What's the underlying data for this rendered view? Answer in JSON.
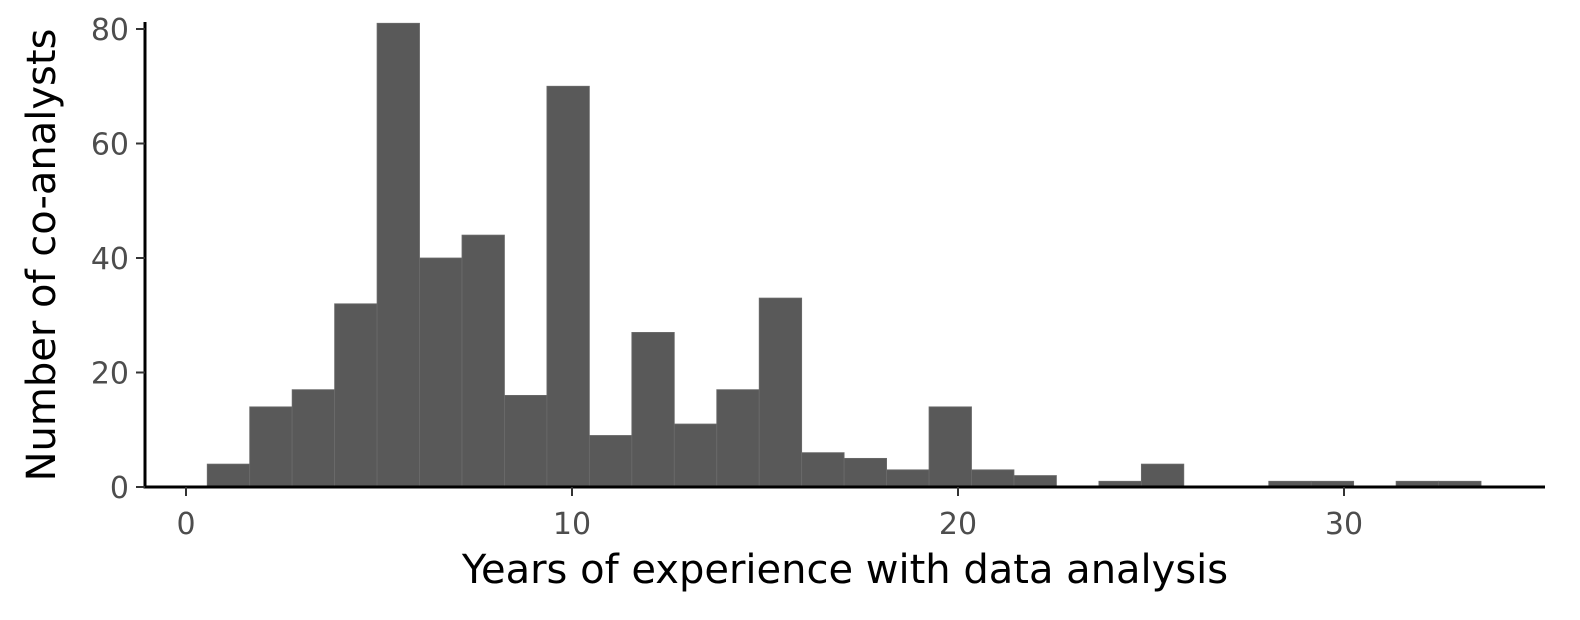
{
  "chart_data": {
    "type": "bar",
    "subtype": "histogram",
    "title": "",
    "xlabel": "Years of experience with data analysis",
    "ylabel": "Number of co-analysts",
    "bin_width": 1.1,
    "bins": [
      {
        "start": 0.55,
        "end": 1.65,
        "count": 4
      },
      {
        "start": 1.65,
        "end": 2.75,
        "count": 14
      },
      {
        "start": 2.75,
        "end": 3.85,
        "count": 17
      },
      {
        "start": 3.85,
        "end": 4.95,
        "count": 32
      },
      {
        "start": 4.95,
        "end": 6.05,
        "count": 81
      },
      {
        "start": 6.05,
        "end": 7.15,
        "count": 40
      },
      {
        "start": 7.15,
        "end": 8.25,
        "count": 44
      },
      {
        "start": 8.25,
        "end": 9.35,
        "count": 16
      },
      {
        "start": 9.35,
        "end": 10.45,
        "count": 70
      },
      {
        "start": 10.45,
        "end": 11.55,
        "count": 9
      },
      {
        "start": 11.55,
        "end": 12.65,
        "count": 27
      },
      {
        "start": 12.65,
        "end": 13.75,
        "count": 11
      },
      {
        "start": 13.75,
        "end": 14.85,
        "count": 17
      },
      {
        "start": 14.85,
        "end": 15.95,
        "count": 33
      },
      {
        "start": 15.95,
        "end": 17.05,
        "count": 6
      },
      {
        "start": 17.05,
        "end": 18.15,
        "count": 5
      },
      {
        "start": 18.15,
        "end": 19.25,
        "count": 3
      },
      {
        "start": 19.25,
        "end": 20.35,
        "count": 14
      },
      {
        "start": 20.35,
        "end": 21.45,
        "count": 3
      },
      {
        "start": 21.45,
        "end": 22.55,
        "count": 2
      },
      {
        "start": 22.55,
        "end": 23.65,
        "count": 0
      },
      {
        "start": 23.65,
        "end": 24.75,
        "count": 1
      },
      {
        "start": 24.75,
        "end": 25.85,
        "count": 4
      },
      {
        "start": 25.85,
        "end": 26.95,
        "count": 0
      },
      {
        "start": 26.95,
        "end": 28.05,
        "count": 0
      },
      {
        "start": 28.05,
        "end": 29.15,
        "count": 1
      },
      {
        "start": 29.15,
        "end": 30.25,
        "count": 1
      },
      {
        "start": 30.25,
        "end": 31.35,
        "count": 0
      },
      {
        "start": 31.35,
        "end": 32.45,
        "count": 1
      },
      {
        "start": 32.45,
        "end": 33.55,
        "count": 1
      }
    ],
    "xlim": [
      -1.1,
      35.2
    ],
    "ylim": [
      0,
      81
    ],
    "xticks": [
      0,
      10,
      20,
      30
    ],
    "yticks": [
      0,
      20,
      40,
      60,
      80
    ],
    "grid": false,
    "legend": "none",
    "bar_color": "#595959",
    "bar_edge_color": "#6b6b6b"
  }
}
